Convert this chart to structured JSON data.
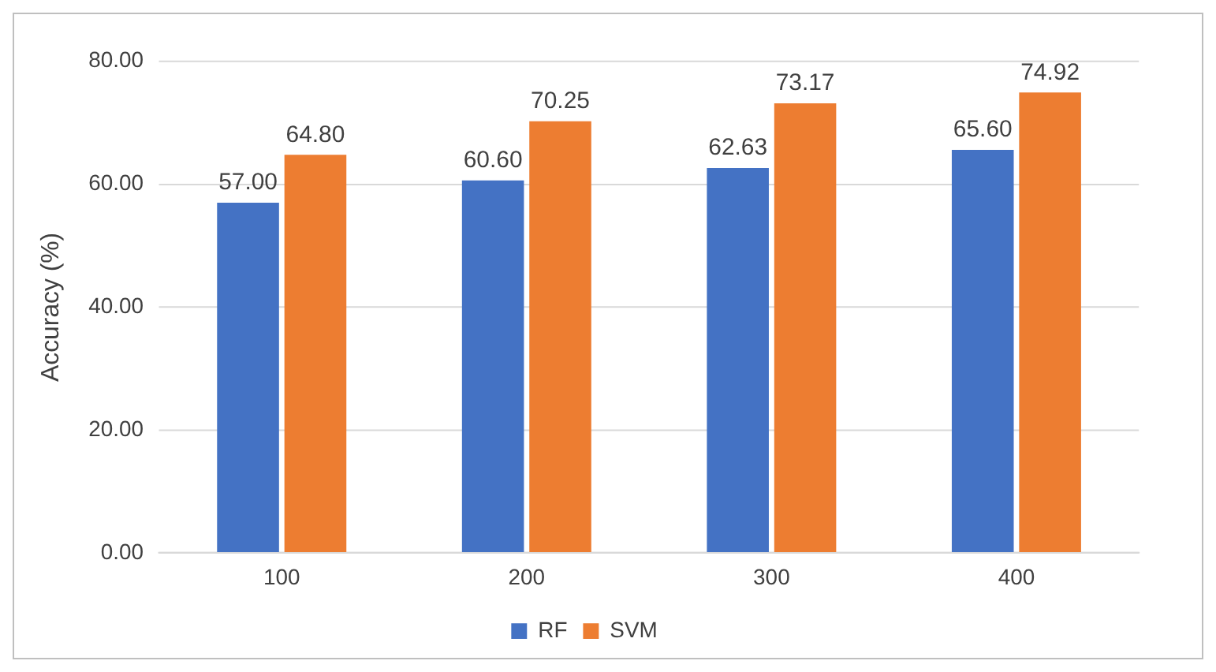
{
  "chart_data": {
    "type": "bar",
    "ylabel": "Accuracy (%)",
    "categories": [
      "100",
      "200",
      "300",
      "400"
    ],
    "series": [
      {
        "name": "RF",
        "color": "#4472c4",
        "values": [
          57.0,
          60.6,
          62.63,
          65.6
        ],
        "value_labels": [
          "57.00",
          "60.60",
          "62.63",
          "65.60"
        ]
      },
      {
        "name": "SVM",
        "color": "#ed7d31",
        "values": [
          64.8,
          70.25,
          73.17,
          74.92
        ],
        "value_labels": [
          "64.80",
          "70.25",
          "73.17",
          "74.92"
        ]
      }
    ],
    "ylim": [
      0,
      80
    ],
    "yticks": [
      {
        "value": 0,
        "label": "0.00"
      },
      {
        "value": 20,
        "label": "20.00"
      },
      {
        "value": 40,
        "label": "40.00"
      },
      {
        "value": 60,
        "label": "60.00"
      },
      {
        "value": 80,
        "label": "80.00"
      }
    ],
    "grid": "y",
    "legend": "bottom"
  }
}
